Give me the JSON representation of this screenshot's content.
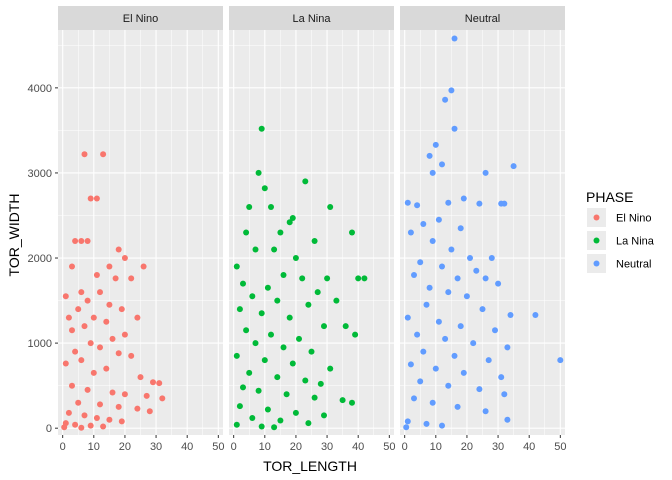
{
  "chart_data": {
    "type": "scatter",
    "xlabel": "TOR_LENGTH",
    "ylabel": "TOR_WIDTH",
    "xlim": [
      -1.5,
      51.5
    ],
    "ylim": [
      -80,
      4680
    ],
    "xticks": [
      0,
      10,
      20,
      30,
      40,
      50
    ],
    "yticks": [
      0,
      1000,
      2000,
      3000,
      4000
    ],
    "grid": true,
    "facets": [
      "El Nino",
      "La Nina",
      "Neutral"
    ],
    "legend": {
      "title": "PHASE",
      "position": "right",
      "entries": [
        {
          "label": "El Nino",
          "color": "#F8766D"
        },
        {
          "label": "La Nina",
          "color": "#00BA38"
        },
        {
          "label": "Neutral",
          "color": "#619CFF"
        }
      ]
    },
    "series": [
      {
        "name": "El Nino",
        "color": "#F8766D",
        "points": [
          [
            7,
            3220
          ],
          [
            13,
            3220
          ],
          [
            9,
            2700
          ],
          [
            11,
            2700
          ],
          [
            6,
            2200
          ],
          [
            8,
            2200
          ],
          [
            4,
            2200
          ],
          [
            18,
            2100
          ],
          [
            20,
            2000
          ],
          [
            15,
            1900
          ],
          [
            3,
            1900
          ],
          [
            26,
            1900
          ],
          [
            11,
            1800
          ],
          [
            17,
            1760
          ],
          [
            22,
            1760
          ],
          [
            6,
            1600
          ],
          [
            12,
            1600
          ],
          [
            1,
            1550
          ],
          [
            8,
            1500
          ],
          [
            15,
            1450
          ],
          [
            5,
            1400
          ],
          [
            19,
            1400
          ],
          [
            2,
            1300
          ],
          [
            10,
            1300
          ],
          [
            14,
            1250
          ],
          [
            24,
            1300
          ],
          [
            7,
            1200
          ],
          [
            3,
            1150
          ],
          [
            20,
            1100
          ],
          [
            16,
            1050
          ],
          [
            9,
            1000
          ],
          [
            12,
            950
          ],
          [
            4,
            900
          ],
          [
            18,
            880
          ],
          [
            22,
            850
          ],
          [
            6,
            800
          ],
          [
            1,
            760
          ],
          [
            14,
            700
          ],
          [
            10,
            650
          ],
          [
            25,
            600
          ],
          [
            29,
            540
          ],
          [
            31,
            530
          ],
          [
            3,
            500
          ],
          [
            8,
            450
          ],
          [
            16,
            420
          ],
          [
            20,
            400
          ],
          [
            27,
            380
          ],
          [
            32,
            350
          ],
          [
            5,
            300
          ],
          [
            12,
            280
          ],
          [
            18,
            250
          ],
          [
            24,
            230
          ],
          [
            28,
            200
          ],
          [
            2,
            180
          ],
          [
            7,
            150
          ],
          [
            11,
            120
          ],
          [
            15,
            100
          ],
          [
            19,
            80
          ],
          [
            1,
            60
          ],
          [
            4,
            40
          ],
          [
            9,
            30
          ],
          [
            13,
            20
          ],
          [
            0.5,
            10
          ],
          [
            6,
            5
          ]
        ]
      },
      {
        "name": "La Nina",
        "color": "#00BA38",
        "points": [
          [
            9,
            3520
          ],
          [
            8,
            3000
          ],
          [
            10,
            2820
          ],
          [
            23,
            2900
          ],
          [
            5,
            2600
          ],
          [
            12,
            2600
          ],
          [
            19,
            2470
          ],
          [
            18,
            2420
          ],
          [
            31,
            2600
          ],
          [
            4,
            2300
          ],
          [
            15,
            2300
          ],
          [
            26,
            2200
          ],
          [
            38,
            2300
          ],
          [
            7,
            2100
          ],
          [
            13,
            2100
          ],
          [
            20,
            2000
          ],
          [
            1,
            1900
          ],
          [
            16,
            1800
          ],
          [
            22,
            1760
          ],
          [
            30,
            1760
          ],
          [
            40,
            1760
          ],
          [
            42,
            1760
          ],
          [
            3,
            1700
          ],
          [
            11,
            1650
          ],
          [
            27,
            1600
          ],
          [
            6,
            1550
          ],
          [
            14,
            1500
          ],
          [
            24,
            1450
          ],
          [
            33,
            1500
          ],
          [
            2,
            1400
          ],
          [
            9,
            1350
          ],
          [
            18,
            1300
          ],
          [
            29,
            1200
          ],
          [
            36,
            1200
          ],
          [
            4,
            1150
          ],
          [
            12,
            1100
          ],
          [
            21,
            1050
          ],
          [
            39,
            1100
          ],
          [
            7,
            1000
          ],
          [
            16,
            950
          ],
          [
            25,
            900
          ],
          [
            1,
            850
          ],
          [
            10,
            800
          ],
          [
            19,
            760
          ],
          [
            31,
            700
          ],
          [
            5,
            650
          ],
          [
            14,
            600
          ],
          [
            23,
            560
          ],
          [
            28,
            520
          ],
          [
            3,
            480
          ],
          [
            8,
            440
          ],
          [
            17,
            400
          ],
          [
            26,
            360
          ],
          [
            35,
            330
          ],
          [
            38,
            300
          ],
          [
            2,
            260
          ],
          [
            11,
            220
          ],
          [
            20,
            180
          ],
          [
            29,
            150
          ],
          [
            6,
            120
          ],
          [
            15,
            90
          ],
          [
            24,
            60
          ],
          [
            1,
            40
          ],
          [
            9,
            20
          ],
          [
            13,
            10
          ]
        ]
      },
      {
        "name": "Neutral",
        "color": "#619CFF",
        "points": [
          [
            16,
            4580
          ],
          [
            15,
            3970
          ],
          [
            13,
            3860
          ],
          [
            10,
            3330
          ],
          [
            16,
            3520
          ],
          [
            8,
            3200
          ],
          [
            12,
            3100
          ],
          [
            9,
            3000
          ],
          [
            35,
            3080
          ],
          [
            26,
            3000
          ],
          [
            19,
            2700
          ],
          [
            14,
            2650
          ],
          [
            1,
            2650
          ],
          [
            4,
            2620
          ],
          [
            24,
            2640
          ],
          [
            31,
            2640
          ],
          [
            32,
            2640
          ],
          [
            11,
            2450
          ],
          [
            6,
            2400
          ],
          [
            18,
            2350
          ],
          [
            2,
            2300
          ],
          [
            9,
            2200
          ],
          [
            15,
            2100
          ],
          [
            21,
            2000
          ],
          [
            28,
            2000
          ],
          [
            5,
            1950
          ],
          [
            12,
            1900
          ],
          [
            23,
            1850
          ],
          [
            3,
            1800
          ],
          [
            17,
            1760
          ],
          [
            26,
            1760
          ],
          [
            30,
            1700
          ],
          [
            8,
            1650
          ],
          [
            14,
            1600
          ],
          [
            20,
            1550
          ],
          [
            7,
            1450
          ],
          [
            25,
            1400
          ],
          [
            34,
            1330
          ],
          [
            42,
            1330
          ],
          [
            1,
            1300
          ],
          [
            11,
            1250
          ],
          [
            18,
            1200
          ],
          [
            29,
            1150
          ],
          [
            4,
            1100
          ],
          [
            13,
            1050
          ],
          [
            22,
            1000
          ],
          [
            33,
            950
          ],
          [
            6,
            900
          ],
          [
            16,
            850
          ],
          [
            27,
            800
          ],
          [
            50,
            800
          ],
          [
            2,
            750
          ],
          [
            10,
            700
          ],
          [
            19,
            650
          ],
          [
            31,
            600
          ],
          [
            5,
            550
          ],
          [
            14,
            500
          ],
          [
            24,
            460
          ],
          [
            32,
            400
          ],
          [
            3,
            350
          ],
          [
            9,
            300
          ],
          [
            17,
            250
          ],
          [
            26,
            200
          ],
          [
            33,
            100
          ],
          [
            1,
            80
          ],
          [
            7,
            50
          ],
          [
            12,
            30
          ],
          [
            0.5,
            10
          ]
        ]
      }
    ]
  }
}
